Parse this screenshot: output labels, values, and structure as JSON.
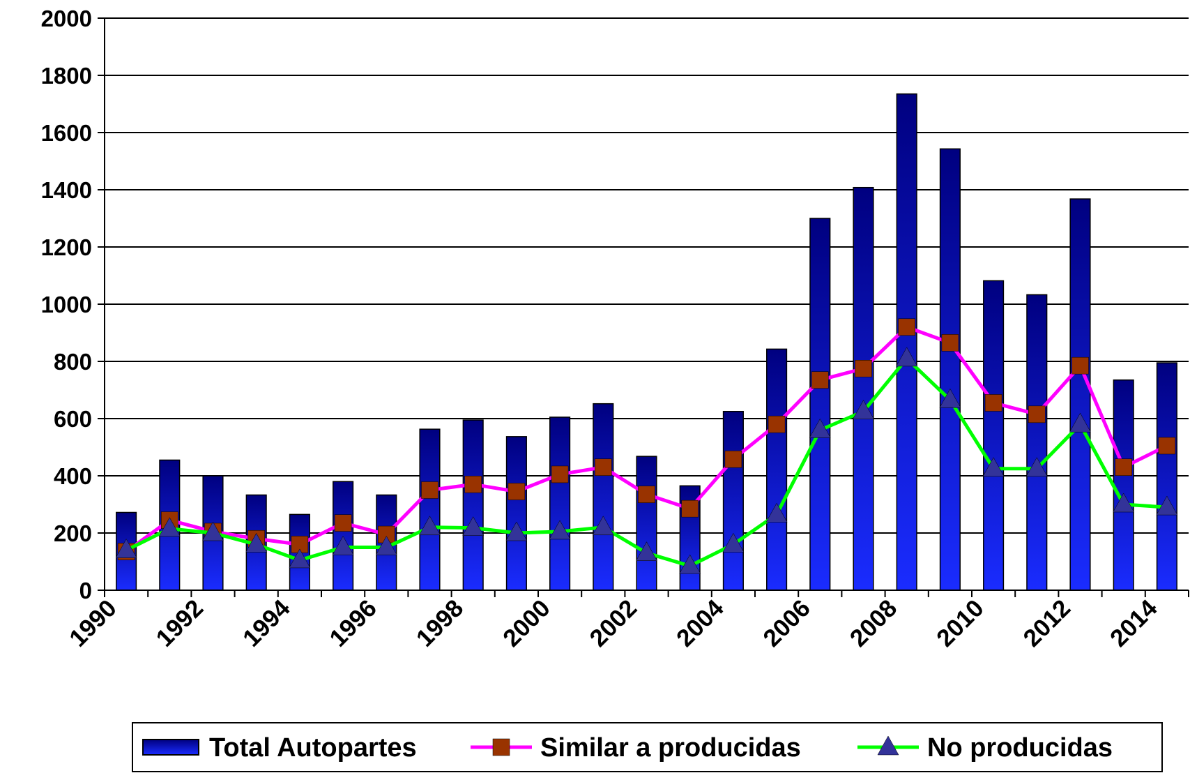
{
  "chart_data": {
    "type": "bar_line",
    "categories": [
      "1990",
      null,
      "1992",
      null,
      "1994",
      null,
      "1996",
      null,
      "1998",
      null,
      "2000",
      null,
      "2002",
      null,
      "2004",
      null,
      "2006",
      null,
      "2008",
      null,
      "2010",
      null,
      "2012",
      null,
      "2014"
    ],
    "series": [
      {
        "name": "Total Autopartes",
        "type": "bar",
        "color": "#000080",
        "color_bottom": "#1a2cff",
        "values": [
          272,
          455,
          400,
          333,
          265,
          380,
          333,
          563,
          595,
          537,
          605,
          652,
          468,
          365,
          625,
          843,
          1300,
          1408,
          1735,
          1543,
          1082,
          1033,
          1368,
          735,
          795
        ]
      },
      {
        "name": "Similar a producidas",
        "type": "line",
        "color": "#ff00ff",
        "marker": "square",
        "marker_color": "#993300",
        "values": [
          135,
          245,
          205,
          180,
          160,
          235,
          195,
          350,
          370,
          345,
          405,
          430,
          335,
          285,
          458,
          580,
          735,
          775,
          920,
          865,
          655,
          615,
          785,
          430,
          505
        ]
      },
      {
        "name": "No producidas",
        "type": "line",
        "color": "#00ff00",
        "marker": "triangle",
        "marker_color": "#333399",
        "values": [
          140,
          215,
          200,
          160,
          105,
          150,
          150,
          220,
          218,
          200,
          205,
          220,
          130,
          85,
          160,
          265,
          560,
          625,
          810,
          665,
          425,
          425,
          580,
          300,
          290
        ]
      }
    ],
    "ylim": [
      0,
      2000
    ],
    "yticks": [
      0,
      200,
      400,
      600,
      800,
      1000,
      1200,
      1400,
      1600,
      1800,
      2000
    ],
    "grid": true,
    "legend": "bottom"
  }
}
